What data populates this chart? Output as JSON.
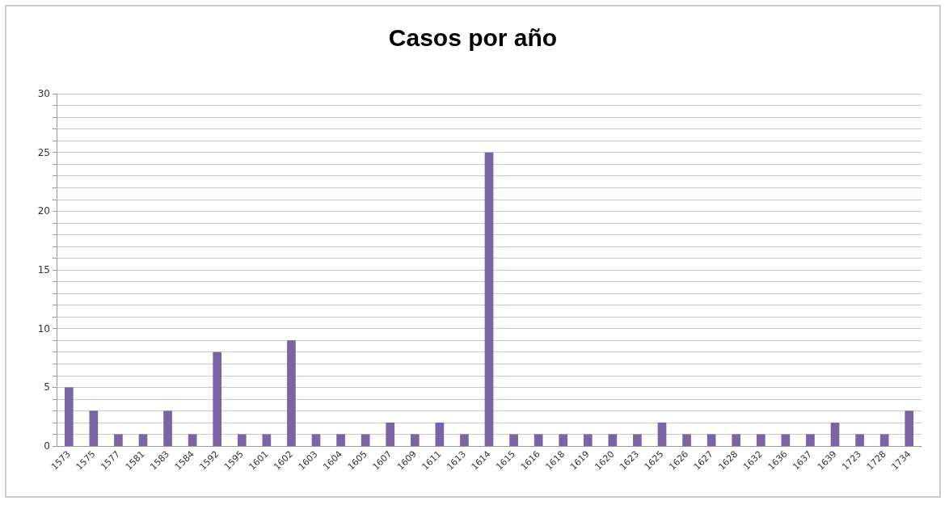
{
  "chart_data": {
    "type": "bar",
    "title": "Casos por año",
    "categories": [
      "1573",
      "1575",
      "1577",
      "1581",
      "1583",
      "1584",
      "1592",
      "1595",
      "1601",
      "1602",
      "1603",
      "1604",
      "1605",
      "1607",
      "1609",
      "1611",
      "1613",
      "1614",
      "1615",
      "1616",
      "1618",
      "1619",
      "1620",
      "1623",
      "1625",
      "1626",
      "1627",
      "1628",
      "1632",
      "1636",
      "1637",
      "1639",
      "1723",
      "1728",
      "1734"
    ],
    "values": [
      5,
      3,
      1,
      1,
      3,
      1,
      8,
      1,
      1,
      9,
      1,
      1,
      1,
      2,
      1,
      2,
      1,
      25,
      1,
      1,
      1,
      1,
      1,
      1,
      2,
      1,
      1,
      1,
      1,
      1,
      1,
      2,
      1,
      1,
      3
    ],
    "color": "#7a64a3",
    "ylim": [
      0,
      30
    ],
    "yticks": [
      0,
      {
        "value": 1,
        "label": null
      },
      {
        "value": 2,
        "label": null
      },
      {
        "value": 3,
        "label": null
      },
      {
        "value": 4,
        "label": null
      },
      5,
      {
        "value": 6,
        "label": null
      },
      {
        "value": 7,
        "label": null
      },
      {
        "value": 8,
        "label": null
      },
      {
        "value": 9,
        "label": null
      },
      10,
      {
        "value": 11,
        "label": null
      },
      {
        "value": 12,
        "label": null
      },
      {
        "value": 13,
        "label": null
      },
      {
        "value": 14,
        "label": null
      },
      15,
      {
        "value": 16,
        "label": null
      },
      {
        "value": 17,
        "label": null
      },
      {
        "value": 18,
        "label": null
      },
      {
        "value": 19,
        "label": null
      },
      20,
      {
        "value": 21,
        "label": null
      },
      {
        "value": 22,
        "label": null
      },
      {
        "value": 23,
        "label": null
      },
      {
        "value": 24,
        "label": null
      },
      25,
      {
        "value": 26,
        "label": null
      },
      {
        "value": 27,
        "label": null
      },
      {
        "value": 28,
        "label": null
      },
      {
        "value": 29,
        "label": null
      },
      30
    ],
    "grid": "y"
  }
}
